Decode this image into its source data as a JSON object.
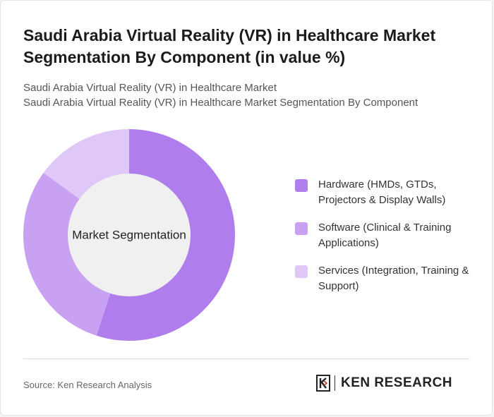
{
  "title": "Saudi Arabia Virtual Reality (VR) in Healthcare Market Segmentation By Component (in value %)",
  "subtitle": [
    "Saudi Arabia Virtual Reality (VR) in Healthcare Market",
    "Saudi Arabia Virtual Reality (VR) in Healthcare Market Segmentation By Component"
  ],
  "source": "Source: Ken Research Analysis",
  "logo_text": "KEN RESEARCH",
  "chart_data": {
    "type": "pie",
    "center_label": "Market Segmentation",
    "categories": [
      "Hardware (HMDs, GTDs, Projectors & Display Walls)",
      "Software (Clinical & Training Applications)",
      "Services (Integration, Training & Support)"
    ],
    "values": [
      55,
      30,
      15
    ],
    "colors": [
      "#b07eec",
      "#c9a1f2",
      "#dfc7f8"
    ],
    "legend_position": "right"
  }
}
